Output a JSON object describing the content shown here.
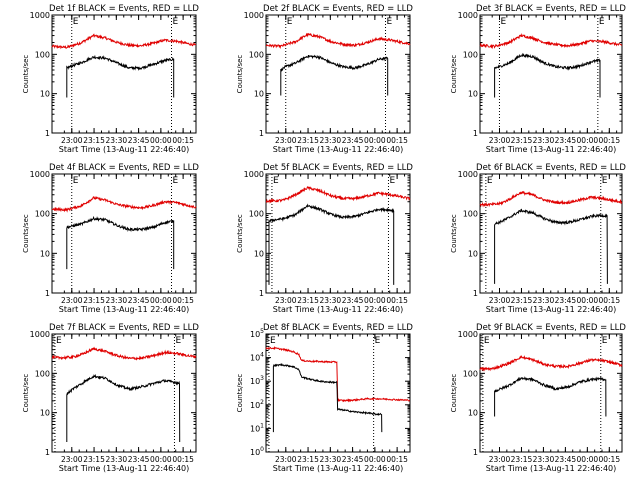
{
  "figure": {
    "time_unit": "minutes after 22:46:40",
    "major_ticks": [
      13.33,
      28.33,
      43.33,
      58.33,
      73.33,
      88.33
    ],
    "tick_labels": [
      "23:00",
      "23:15",
      "23:30",
      "23:45",
      "00:00",
      "00:15"
    ],
    "xlim": [
      0,
      97
    ]
  },
  "chart_data": [
    {
      "type": "line",
      "scale": "log",
      "title": "Det 1f BLACK = Events, RED = LLD",
      "xlabel": "Start Time (13-Aug-11 22:46:40)",
      "ylabel": "Counts/sec",
      "ylim": [
        1,
        1000
      ],
      "y_ticks": [
        1,
        10,
        100,
        1000
      ],
      "y_tick_labels": [
        "1",
        "10",
        "100",
        "1000"
      ],
      "x_ticks": [
        "23:00",
        "23:15",
        "23:30",
        "23:45",
        "00:00",
        "00:15"
      ],
      "markers": [
        {
          "x": 13.3,
          "label": "E"
        },
        {
          "x": 80.5,
          "label": "E"
        }
      ],
      "series": [
        {
          "name": "Events",
          "color": "#000000",
          "start": 10,
          "end": 82,
          "dropout": 8,
          "x": [
            10,
            13,
            20,
            28,
            36,
            44,
            52,
            60,
            68,
            76,
            82
          ],
          "y": [
            45,
            50,
            62,
            85,
            80,
            60,
            45,
            45,
            55,
            70,
            75
          ]
        },
        {
          "name": "LLD",
          "color": "#e00000",
          "start": 0,
          "end": 97,
          "x": [
            0,
            10,
            20,
            28,
            36,
            44,
            52,
            60,
            68,
            76,
            84,
            92,
            97
          ],
          "y": [
            160,
            150,
            200,
            300,
            260,
            200,
            170,
            165,
            190,
            230,
            215,
            185,
            170
          ]
        }
      ]
    },
    {
      "type": "line",
      "scale": "log",
      "title": "Det 2f BLACK = Events, RED = LLD",
      "xlabel": "Start Time (13-Aug-11 22:46:40)",
      "ylabel": "Counts/sec",
      "ylim": [
        1,
        1000
      ],
      "y_ticks": [
        1,
        10,
        100,
        1000
      ],
      "y_tick_labels": [
        "1",
        "10",
        "100",
        "1000"
      ],
      "x_ticks": [
        "23:00",
        "23:15",
        "23:30",
        "23:45",
        "00:00",
        "00:15"
      ],
      "markers": [
        {
          "x": 13.3,
          "label": "E"
        },
        {
          "x": 80.5,
          "label": "E"
        }
      ],
      "series": [
        {
          "name": "Events",
          "color": "#000000",
          "start": 10,
          "end": 82,
          "dropout": 9,
          "x": [
            10,
            13,
            20,
            28,
            36,
            44,
            52,
            60,
            68,
            76,
            82
          ],
          "y": [
            40,
            48,
            60,
            90,
            85,
            60,
            48,
            45,
            55,
            75,
            80
          ]
        },
        {
          "name": "LLD",
          "color": "#e00000",
          "start": 0,
          "end": 97,
          "x": [
            0,
            10,
            20,
            28,
            36,
            44,
            52,
            60,
            68,
            76,
            84,
            92,
            97
          ],
          "y": [
            170,
            160,
            210,
            320,
            280,
            210,
            180,
            170,
            200,
            250,
            230,
            200,
            185
          ]
        }
      ]
    },
    {
      "type": "line",
      "scale": "log",
      "title": "Det 3f BLACK = Events, RED = LLD",
      "xlabel": "Start Time (13-Aug-11 22:46:40)",
      "ylabel": "Counts/sec",
      "ylim": [
        1,
        1000
      ],
      "y_ticks": [
        1,
        10,
        100,
        1000
      ],
      "y_tick_labels": [
        "1",
        "10",
        "100",
        "1000"
      ],
      "x_ticks": [
        "23:00",
        "23:15",
        "23:30",
        "23:45",
        "00:00",
        "00:15"
      ],
      "markers": [
        {
          "x": 13.3,
          "label": "E"
        },
        {
          "x": 80.5,
          "label": "E"
        }
      ],
      "series": [
        {
          "name": "Events",
          "color": "#000000",
          "start": 10,
          "end": 82,
          "dropout": 8,
          "x": [
            10,
            13,
            20,
            28,
            36,
            44,
            52,
            60,
            68,
            76,
            82
          ],
          "y": [
            45,
            48,
            60,
            95,
            88,
            60,
            48,
            45,
            50,
            65,
            70
          ]
        },
        {
          "name": "LLD",
          "color": "#e00000",
          "start": 0,
          "end": 97,
          "x": [
            0,
            10,
            20,
            28,
            36,
            44,
            52,
            60,
            68,
            76,
            84,
            92,
            97
          ],
          "y": [
            170,
            160,
            200,
            300,
            260,
            200,
            175,
            165,
            185,
            220,
            210,
            185,
            170
          ]
        }
      ]
    },
    {
      "type": "line",
      "scale": "log",
      "title": "Det 4f BLACK = Events, RED = LLD",
      "xlabel": "Start Time (13-Aug-11 22:46:40)",
      "ylabel": "Counts/sec",
      "ylim": [
        1,
        1000
      ],
      "y_ticks": [
        1,
        10,
        100,
        1000
      ],
      "y_tick_labels": [
        "1",
        "10",
        "100",
        "1000"
      ],
      "x_ticks": [
        "23:00",
        "23:15",
        "23:30",
        "23:45",
        "00:00",
        "00:15"
      ],
      "markers": [
        {
          "x": 13.3,
          "label": "E"
        },
        {
          "x": 80.5,
          "label": "E"
        }
      ],
      "series": [
        {
          "name": "Events",
          "color": "#000000",
          "start": 10,
          "end": 82,
          "dropout": 4,
          "x": [
            10,
            13,
            20,
            28,
            36,
            44,
            52,
            60,
            68,
            76,
            82
          ],
          "y": [
            45,
            48,
            55,
            75,
            70,
            50,
            40,
            40,
            45,
            60,
            65
          ]
        },
        {
          "name": "LLD",
          "color": "#e00000",
          "start": 0,
          "end": 97,
          "x": [
            0,
            10,
            20,
            28,
            36,
            44,
            52,
            60,
            68,
            76,
            84,
            92,
            97
          ],
          "y": [
            130,
            125,
            160,
            250,
            220,
            170,
            150,
            140,
            160,
            200,
            190,
            160,
            145
          ]
        }
      ]
    },
    {
      "type": "line",
      "scale": "log",
      "title": "Det 5f BLACK = Events, RED = LLD",
      "xlabel": "Start Time (13-Aug-11 22:46:40)",
      "ylabel": "Counts/sec",
      "ylim": [
        1,
        1000
      ],
      "y_ticks": [
        1,
        10,
        100,
        1000
      ],
      "y_tick_labels": [
        "1",
        "10",
        "100",
        "1000"
      ],
      "x_ticks": [
        "23:00",
        "23:15",
        "23:30",
        "23:45",
        "00:00",
        "00:15"
      ],
      "markers": [
        {
          "x": 4,
          "label": "E"
        },
        {
          "x": 82.5,
          "label": "E"
        }
      ],
      "series": [
        {
          "name": "Events",
          "color": "#000000",
          "start": 2,
          "end": 86,
          "dropout": 1.6,
          "x": [
            2,
            6,
            12,
            20,
            28,
            36,
            44,
            52,
            60,
            68,
            76,
            82,
            86
          ],
          "y": [
            65,
            70,
            75,
            95,
            160,
            130,
            95,
            80,
            85,
            105,
            130,
            125,
            120
          ]
        },
        {
          "name": "LLD",
          "color": "#e00000",
          "start": 0,
          "end": 97,
          "x": [
            0,
            6,
            12,
            20,
            28,
            36,
            44,
            52,
            60,
            68,
            76,
            84,
            92,
            97
          ],
          "y": [
            210,
            210,
            220,
            300,
            450,
            380,
            280,
            240,
            240,
            280,
            330,
            300,
            260,
            240
          ]
        }
      ]
    },
    {
      "type": "line",
      "scale": "log",
      "title": "Det 6f BLACK = Events, RED = LLD",
      "xlabel": "Start Time (13-Aug-11 22:46:40)",
      "ylabel": "Counts/sec",
      "ylim": [
        1,
        1000
      ],
      "y_ticks": [
        1,
        10,
        100,
        1000
      ],
      "y_tick_labels": [
        "1",
        "10",
        "100",
        "1000"
      ],
      "x_ticks": [
        "23:00",
        "23:15",
        "23:30",
        "23:45",
        "00:00",
        "00:15"
      ],
      "markers": [
        {
          "x": 4,
          "label": "E"
        },
        {
          "x": 82.5,
          "label": "E"
        }
      ],
      "series": [
        {
          "name": "Events",
          "color": "#000000",
          "start": 10,
          "end": 87,
          "dropout": 1.7,
          "x": [
            10,
            14,
            20,
            28,
            36,
            44,
            52,
            60,
            68,
            76,
            82,
            87
          ],
          "y": [
            55,
            62,
            80,
            120,
            105,
            75,
            60,
            60,
            70,
            85,
            90,
            88
          ]
        },
        {
          "name": "LLD",
          "color": "#e00000",
          "start": 0,
          "end": 97,
          "x": [
            0,
            8,
            14,
            20,
            28,
            36,
            44,
            52,
            60,
            68,
            76,
            84,
            92,
            97
          ],
          "y": [
            170,
            170,
            180,
            230,
            340,
            300,
            220,
            190,
            190,
            220,
            260,
            240,
            210,
            200
          ]
        }
      ]
    },
    {
      "type": "line",
      "scale": "log",
      "title": "Det 7f BLACK = Events, RED = LLD",
      "xlabel": "Start Time (13-Aug-11 22:46:40)",
      "ylabel": "Counts/sec",
      "ylim": [
        1,
        1000
      ],
      "y_ticks": [
        1,
        10,
        100,
        1000
      ],
      "y_tick_labels": [
        "1",
        "10",
        "100",
        "1000"
      ],
      "x_ticks": [
        "23:00",
        "23:15",
        "23:30",
        "23:45",
        "00:00",
        "00:15"
      ],
      "markers": [
        {
          "x": 2,
          "label": "E"
        },
        {
          "x": 82.5,
          "label": "E"
        }
      ],
      "series": [
        {
          "name": "Events",
          "color": "#000000",
          "start": 10,
          "end": 86,
          "dropout": 1.8,
          "x": [
            10,
            14,
            20,
            28,
            36,
            44,
            52,
            60,
            68,
            76,
            82,
            86
          ],
          "y": [
            30,
            40,
            55,
            85,
            75,
            50,
            40,
            45,
            55,
            65,
            60,
            55
          ]
        },
        {
          "name": "LLD",
          "color": "#e00000",
          "start": 0,
          "end": 97,
          "x": [
            0,
            8,
            14,
            20,
            28,
            36,
            44,
            52,
            60,
            68,
            76,
            84,
            92,
            97
          ],
          "y": [
            250,
            250,
            260,
            300,
            420,
            360,
            280,
            240,
            240,
            280,
            340,
            320,
            280,
            260
          ]
        }
      ]
    },
    {
      "type": "line",
      "scale": "log",
      "title": "Det 8f BLACK = Events, RED = LLD",
      "xlabel": "Start Time (13-Aug-11 22:46:40)",
      "ylabel": "Counts/sec",
      "ylim": [
        1,
        100000
      ],
      "y_ticks": [
        1,
        10,
        100,
        1000,
        10000,
        100000
      ],
      "y_tick_labels": [
        "10^0",
        "10^1",
        "10^2",
        "10^3",
        "10^4",
        "10^5"
      ],
      "x_ticks": [
        "23:00",
        "23:15",
        "23:30",
        "23:45",
        "00:00",
        "00:15"
      ],
      "markers": [
        {
          "x": 2,
          "label": "E"
        },
        {
          "x": 72.5,
          "label": "E"
        }
      ],
      "series": [
        {
          "name": "Events",
          "color": "#000000",
          "start": 5,
          "end": 78,
          "dropout": 7,
          "x": [
            5,
            10,
            18,
            22,
            24,
            30,
            36,
            44,
            47.8,
            48.2,
            52,
            60,
            68,
            74,
            78
          ],
          "y": [
            4500,
            5000,
            4200,
            3200,
            1500,
            1200,
            1000,
            900,
            900,
            65,
            60,
            50,
            45,
            40,
            40
          ]
        },
        {
          "name": "LLD",
          "color": "#e00000",
          "start": 0,
          "end": 97,
          "x": [
            0,
            6,
            12,
            18,
            22,
            24,
            30,
            36,
            44,
            47.8,
            48.2,
            52,
            60,
            68,
            76,
            84,
            92,
            97
          ],
          "y": [
            25000,
            25000,
            22000,
            18000,
            14000,
            7500,
            7000,
            6800,
            6500,
            6500,
            160,
            150,
            160,
            180,
            180,
            170,
            160,
            155
          ]
        }
      ]
    },
    {
      "type": "line",
      "scale": "log",
      "title": "Det 9f BLACK = Events, RED = LLD",
      "xlabel": "Start Time (13-Aug-11 22:46:40)",
      "ylabel": "Counts/sec",
      "ylim": [
        1,
        1000
      ],
      "y_ticks": [
        1,
        10,
        100,
        1000
      ],
      "y_tick_labels": [
        "1",
        "10",
        "100",
        "1000"
      ],
      "x_ticks": [
        "23:00",
        "23:15",
        "23:30",
        "23:45",
        "00:00",
        "00:15"
      ],
      "markers": [
        {
          "x": 2,
          "label": "E"
        },
        {
          "x": 82.5,
          "label": "E"
        }
      ],
      "series": [
        {
          "name": "Events",
          "color": "#000000",
          "start": 10,
          "end": 86,
          "dropout": 8,
          "x": [
            10,
            14,
            20,
            28,
            36,
            44,
            52,
            60,
            68,
            76,
            82,
            86
          ],
          "y": [
            35,
            40,
            50,
            75,
            70,
            50,
            40,
            45,
            60,
            70,
            72,
            70
          ]
        },
        {
          "name": "LLD",
          "color": "#e00000",
          "start": 0,
          "end": 97,
          "x": [
            0,
            8,
            14,
            20,
            28,
            36,
            44,
            52,
            60,
            68,
            76,
            84,
            92,
            97
          ],
          "y": [
            130,
            130,
            150,
            180,
            260,
            220,
            170,
            150,
            150,
            180,
            220,
            210,
            180,
            160
          ]
        }
      ]
    }
  ]
}
